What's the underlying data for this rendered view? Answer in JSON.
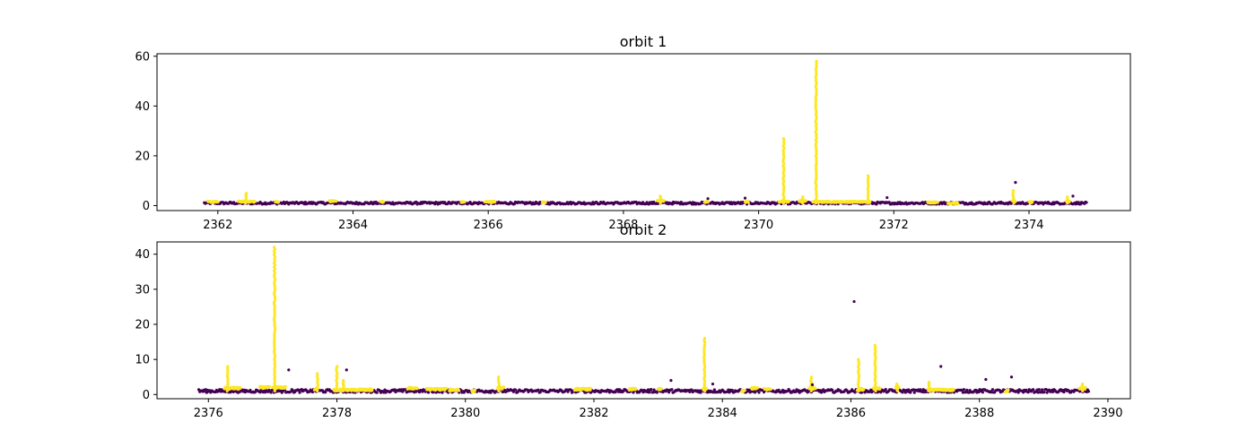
{
  "colors": {
    "purple": "#440154",
    "yellow": "#fde725"
  },
  "chart_data": [
    {
      "type": "scatter",
      "title": "orbit 1",
      "xlabel": "",
      "ylabel": "",
      "xlim": [
        2361.1,
        2375.5
      ],
      "ylim": [
        -2,
        61
      ],
      "xticks": [
        2362,
        2364,
        2366,
        2368,
        2370,
        2372,
        2374
      ],
      "yticks": [
        0,
        20,
        40,
        60
      ],
      "grid": false,
      "x_range": [
        2361.8,
        2374.85
      ],
      "baseline": 1.0,
      "flagged_segments": [
        {
          "x0": 2361.85,
          "x1": 2362.0,
          "y": 1.5
        },
        {
          "x0": 2362.3,
          "x1": 2362.55,
          "y": 1.6
        },
        {
          "x0": 2362.85,
          "x1": 2362.9,
          "y": 1.5
        },
        {
          "x0": 2363.65,
          "x1": 2363.75,
          "y": 1.8
        },
        {
          "x0": 2364.4,
          "x1": 2364.45,
          "y": 1.5
        },
        {
          "x0": 2365.6,
          "x1": 2365.65,
          "y": 1.4
        },
        {
          "x0": 2365.95,
          "x1": 2366.1,
          "y": 1.5
        },
        {
          "x0": 2366.8,
          "x1": 2366.85,
          "y": 1.3
        },
        {
          "x0": 2368.5,
          "x1": 2368.6,
          "y": 2.0
        },
        {
          "x0": 2369.2,
          "x1": 2369.25,
          "y": 1.5
        },
        {
          "x0": 2369.8,
          "x1": 2369.85,
          "y": 1.5
        },
        {
          "x0": 2370.3,
          "x1": 2370.45,
          "y": 1.6
        },
        {
          "x0": 2370.6,
          "x1": 2370.7,
          "y": 1.8
        },
        {
          "x0": 2370.8,
          "x1": 2371.65,
          "y": 1.5
        },
        {
          "x0": 2372.5,
          "x1": 2372.65,
          "y": 1.3
        },
        {
          "x0": 2372.8,
          "x1": 2372.95,
          "y": 1.0
        },
        {
          "x0": 2373.75,
          "x1": 2373.8,
          "y": 1.8
        },
        {
          "x0": 2374.0,
          "x1": 2374.05,
          "y": 1.3
        },
        {
          "x0": 2374.55,
          "x1": 2374.6,
          "y": 1.5
        }
      ],
      "flagged_spikes": [
        {
          "x": 2362.42,
          "peak": 5.0
        },
        {
          "x": 2368.55,
          "peak": 3.8
        },
        {
          "x": 2370.37,
          "peak": 27.0
        },
        {
          "x": 2370.65,
          "peak": 3.5
        },
        {
          "x": 2370.85,
          "peak": 58.0
        },
        {
          "x": 2371.62,
          "peak": 12.0
        },
        {
          "x": 2373.77,
          "peak": 6.0
        },
        {
          "x": 2374.57,
          "peak": 3.5
        }
      ],
      "outliers": [
        {
          "x": 2369.25,
          "y": 2.8
        },
        {
          "x": 2369.8,
          "y": 3.0
        },
        {
          "x": 2371.9,
          "y": 3.2
        },
        {
          "x": 2373.8,
          "y": 9.3
        },
        {
          "x": 2374.65,
          "y": 3.8
        }
      ]
    },
    {
      "type": "scatter",
      "title": "orbit 2",
      "xlabel": "",
      "ylabel": "",
      "xlim": [
        2375.2,
        2390.35
      ],
      "ylim": [
        -1.2,
        43.5
      ],
      "xticks": [
        2376,
        2378,
        2380,
        2382,
        2384,
        2386,
        2388,
        2390
      ],
      "yticks": [
        0,
        10,
        20,
        30,
        40
      ],
      "grid": false,
      "x_range": [
        2375.85,
        2389.7
      ],
      "baseline": 1.0,
      "flagged_segments": [
        {
          "x0": 2376.25,
          "x1": 2376.5,
          "y": 1.8
        },
        {
          "x0": 2376.8,
          "x1": 2376.95,
          "y": 2.0
        },
        {
          "x0": 2377.0,
          "x1": 2377.2,
          "y": 2.0
        },
        {
          "x0": 2377.65,
          "x1": 2377.7,
          "y": 1.5
        },
        {
          "x0": 2377.95,
          "x1": 2378.55,
          "y": 1.3
        },
        {
          "x0": 2379.1,
          "x1": 2379.25,
          "y": 1.8
        },
        {
          "x0": 2379.4,
          "x1": 2379.7,
          "y": 1.5
        },
        {
          "x0": 2379.75,
          "x1": 2379.9,
          "y": 1.3
        },
        {
          "x0": 2380.1,
          "x1": 2380.15,
          "y": 1.0
        },
        {
          "x0": 2380.5,
          "x1": 2380.6,
          "y": 1.8
        },
        {
          "x0": 2381.7,
          "x1": 2381.95,
          "y": 1.5
        },
        {
          "x0": 2382.55,
          "x1": 2382.65,
          "y": 1.5
        },
        {
          "x0": 2383.0,
          "x1": 2383.05,
          "y": 1.5
        },
        {
          "x0": 2383.7,
          "x1": 2383.75,
          "y": 1.5
        },
        {
          "x0": 2384.3,
          "x1": 2384.35,
          "y": 1.0
        },
        {
          "x0": 2384.45,
          "x1": 2384.55,
          "y": 1.8
        },
        {
          "x0": 2384.65,
          "x1": 2384.75,
          "y": 1.5
        },
        {
          "x0": 2385.35,
          "x1": 2385.45,
          "y": 1.8
        },
        {
          "x0": 2386.1,
          "x1": 2386.2,
          "y": 1.5
        },
        {
          "x0": 2386.35,
          "x1": 2386.45,
          "y": 1.8
        },
        {
          "x0": 2386.7,
          "x1": 2386.75,
          "y": 2.0
        },
        {
          "x0": 2387.2,
          "x1": 2387.6,
          "y": 1.3
        },
        {
          "x0": 2388.4,
          "x1": 2388.45,
          "y": 1.0
        },
        {
          "x0": 2389.55,
          "x1": 2389.65,
          "y": 1.8
        }
      ],
      "flagged_spikes": [
        {
          "x": 2376.3,
          "peak": 8.0
        },
        {
          "x": 2377.03,
          "peak": 42.0
        },
        {
          "x": 2377.7,
          "peak": 6.0
        },
        {
          "x": 2378.0,
          "peak": 8.0
        },
        {
          "x": 2378.1,
          "peak": 4.0
        },
        {
          "x": 2380.52,
          "peak": 5.0
        },
        {
          "x": 2383.72,
          "peak": 16.0
        },
        {
          "x": 2385.38,
          "peak": 5.0
        },
        {
          "x": 2386.12,
          "peak": 10.0
        },
        {
          "x": 2386.38,
          "peak": 14.0
        },
        {
          "x": 2386.72,
          "peak": 3.0
        },
        {
          "x": 2387.22,
          "peak": 3.5
        },
        {
          "x": 2389.6,
          "peak": 3.0
        }
      ],
      "outliers": [
        {
          "x": 2377.25,
          "y": 7.0
        },
        {
          "x": 2378.15,
          "y": 7.0
        },
        {
          "x": 2383.2,
          "y": 4.0
        },
        {
          "x": 2383.85,
          "y": 3.0
        },
        {
          "x": 2385.4,
          "y": 2.8
        },
        {
          "x": 2386.05,
          "y": 26.5
        },
        {
          "x": 2387.4,
          "y": 8.0
        },
        {
          "x": 2388.1,
          "y": 4.3
        },
        {
          "x": 2388.5,
          "y": 5.0
        }
      ]
    }
  ]
}
